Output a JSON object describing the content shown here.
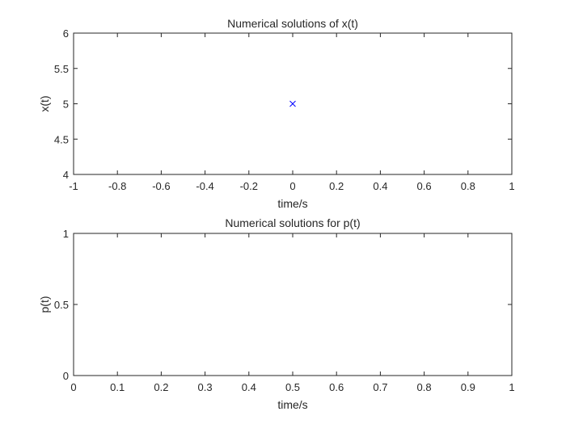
{
  "chart_data": [
    {
      "type": "scatter",
      "title": "Numerical solutions of x(t)",
      "xlabel": "time/s",
      "ylabel": "x(t)",
      "xlim": [
        -1,
        1
      ],
      "ylim": [
        4,
        6
      ],
      "xticks": [
        -1,
        -0.8,
        -0.6,
        -0.4,
        -0.2,
        0,
        0.2,
        0.4,
        0.6,
        0.8,
        1
      ],
      "xtick_labels": [
        "-1",
        "-0.8",
        "-0.6",
        "-0.4",
        "-0.2",
        "0",
        "0.2",
        "0.4",
        "0.6",
        "0.8",
        "1"
      ],
      "yticks": [
        4,
        4.5,
        5,
        5.5,
        6
      ],
      "ytick_labels": [
        "4",
        "4.5",
        "5",
        "5.5",
        "6"
      ],
      "grid": false,
      "series": [
        {
          "marker": "x",
          "color": "#0000ff",
          "points": [
            {
              "x": 0,
              "y": 5
            }
          ]
        }
      ]
    },
    {
      "type": "scatter",
      "title": "Numerical solutions for p(t)",
      "xlabel": "time/s",
      "ylabel": "p(t)",
      "xlim": [
        0,
        1
      ],
      "ylim": [
        0,
        1
      ],
      "xticks": [
        0,
        0.1,
        0.2,
        0.3,
        0.4,
        0.5,
        0.6,
        0.7,
        0.8,
        0.9,
        1
      ],
      "xtick_labels": [
        "0",
        "0.1",
        "0.2",
        "0.3",
        "0.4",
        "0.5",
        "0.6",
        "0.7",
        "0.8",
        "0.9",
        "1"
      ],
      "yticks": [
        0,
        0.5,
        1
      ],
      "ytick_labels": [
        "0",
        "0.5",
        "1"
      ],
      "grid": false,
      "series": []
    }
  ]
}
